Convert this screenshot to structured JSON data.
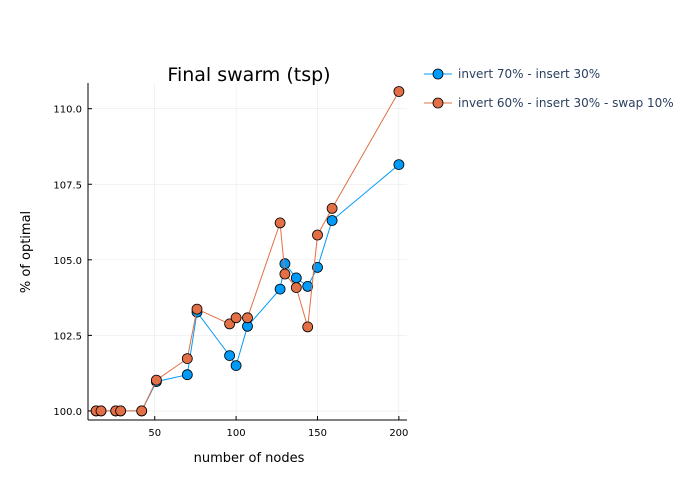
{
  "chart_data": {
    "type": "line",
    "title": "Final swarm (tsp)",
    "xlabel": "number of nodes",
    "ylabel": "% of optimal",
    "xlim": [
      9,
      205
    ],
    "ylim": [
      99.7,
      110.85
    ],
    "x_ticks": [
      50,
      100,
      150,
      200
    ],
    "x_tick_labels": [
      "50",
      "100",
      "150",
      "200"
    ],
    "y_ticks": [
      100.0,
      102.5,
      105.0,
      107.5,
      110.0
    ],
    "y_tick_labels": [
      "100.0",
      "102.5",
      "105.0",
      "107.5",
      "110.0"
    ],
    "grid": true,
    "legend_position": "top-right outside",
    "series": [
      {
        "name": "invert 70% - insert 30%",
        "color": "#009af9",
        "x": [
          14,
          17,
          26,
          29,
          42,
          51,
          70,
          76,
          96,
          100,
          107,
          127,
          130,
          137,
          144,
          150,
          159,
          200
        ],
        "y": [
          100.0,
          100.0,
          100.0,
          100.0,
          100.0,
          100.97,
          101.2,
          103.27,
          101.83,
          101.5,
          102.8,
          104.03,
          104.87,
          104.4,
          104.12,
          104.75,
          106.3,
          108.15
        ]
      },
      {
        "name": "invert 60% - insert 30% - swap 10%",
        "color": "#e26f46",
        "x": [
          14,
          17,
          26,
          29,
          42,
          51,
          70,
          76,
          96,
          100,
          107,
          127,
          130,
          137,
          144,
          150,
          159,
          200
        ],
        "y": [
          100.0,
          100.0,
          100.0,
          100.0,
          100.0,
          101.02,
          101.73,
          103.37,
          102.88,
          103.08,
          103.08,
          106.22,
          104.53,
          104.08,
          102.78,
          105.82,
          106.7,
          110.57
        ]
      }
    ]
  }
}
